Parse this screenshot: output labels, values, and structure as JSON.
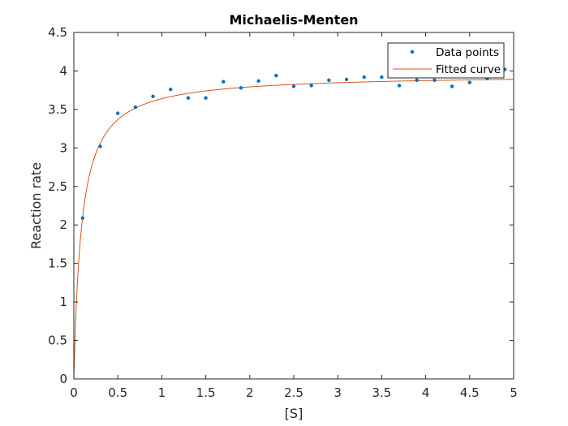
{
  "chart_data": {
    "type": "scatter",
    "title": "Michaelis-Menten",
    "xlabel": "[S]",
    "ylabel": "Reaction rate",
    "xlim": [
      0,
      5
    ],
    "ylim": [
      0,
      4.5
    ],
    "x_ticks": [
      "0",
      "0.5",
      "1",
      "1.5",
      "2",
      "2.5",
      "3",
      "3.5",
      "4",
      "4.5",
      "5"
    ],
    "y_ticks": [
      "0",
      "0.5",
      "1",
      "1.5",
      "2",
      "2.5",
      "3",
      "3.5",
      "4",
      "4.5"
    ],
    "grid": false,
    "legend_position": "top-right",
    "series": [
      {
        "name": "Data points",
        "kind": "markers",
        "color": "#0072BD",
        "x": [
          0.1,
          0.3,
          0.5,
          0.7,
          0.9,
          1.1,
          1.3,
          1.5,
          1.7,
          1.9,
          2.1,
          2.3,
          2.5,
          2.7,
          2.9,
          3.1,
          3.3,
          3.5,
          3.7,
          3.9,
          4.1,
          4.3,
          4.5,
          4.7,
          4.9
        ],
        "y": [
          2.09,
          3.02,
          3.45,
          3.53,
          3.67,
          3.76,
          3.65,
          3.65,
          3.86,
          3.78,
          3.87,
          3.94,
          3.8,
          3.81,
          3.88,
          3.89,
          3.92,
          3.92,
          3.81,
          3.88,
          3.88,
          3.8,
          3.85,
          3.9,
          4.02
        ]
      },
      {
        "name": "Fitted curve",
        "kind": "line",
        "color": "#D95319",
        "model": "Vmax*S/(Km+S)",
        "Vmax": 3.96,
        "Km": 0.088
      }
    ]
  }
}
